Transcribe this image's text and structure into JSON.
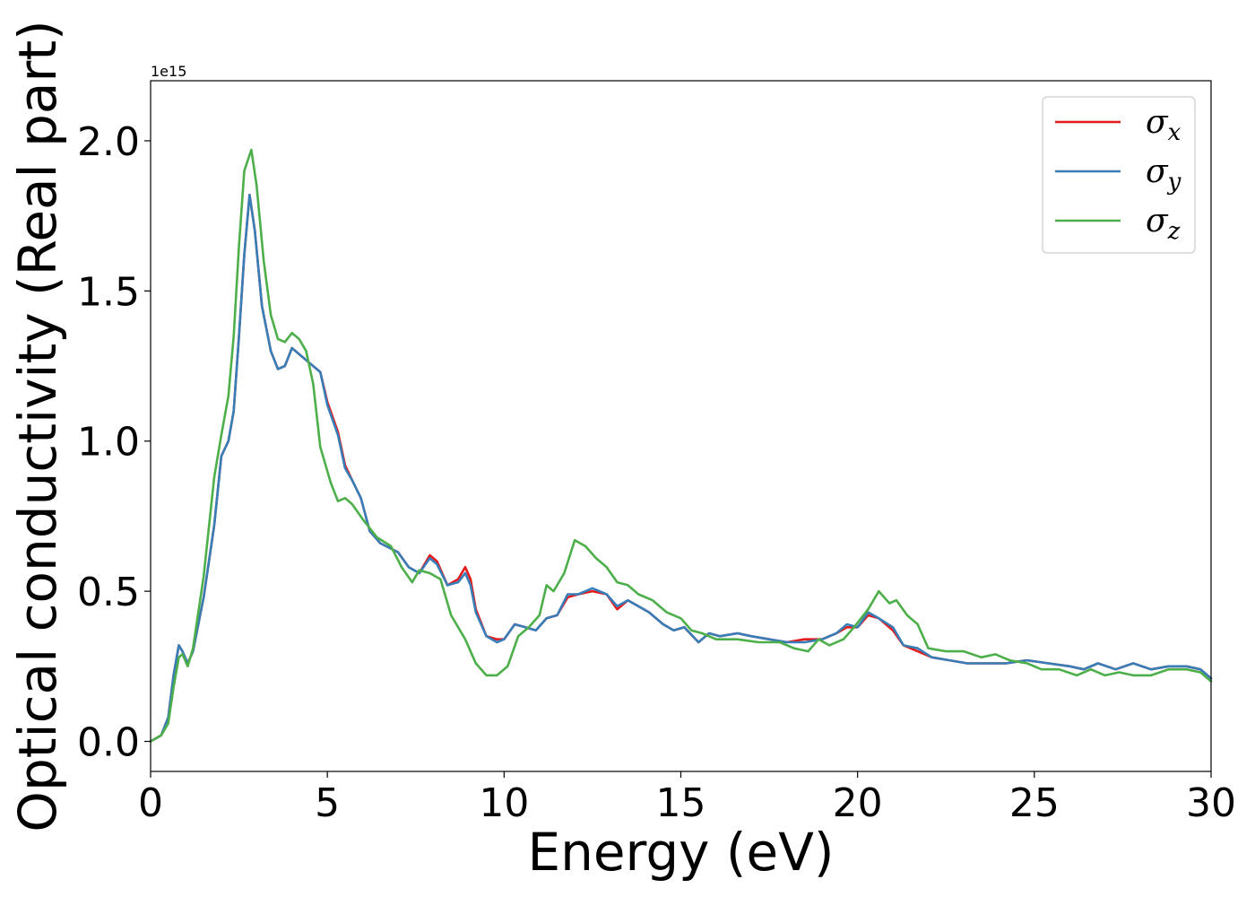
{
  "chart_data": {
    "type": "line",
    "title": "",
    "xlabel": "Energy (eV)",
    "ylabel": "Optical conductivity (Real part)",
    "y_offset_text": "1e15",
    "xlim": [
      0,
      30
    ],
    "ylim": [
      -0.1,
      2.2
    ],
    "xticks": [
      0,
      5,
      10,
      15,
      20,
      25,
      30
    ],
    "xtick_labels": [
      "0",
      "5",
      "10",
      "15",
      "20",
      "25",
      "30"
    ],
    "yticks": [
      0.0,
      0.5,
      1.0,
      1.5,
      2.0
    ],
    "ytick_labels": [
      "0.0",
      "0.5",
      "1.0",
      "1.5",
      "2.0"
    ],
    "grid": false,
    "legend_position": "top-right",
    "series": [
      {
        "name": "σx",
        "legend_symbol": "σ",
        "legend_subscript": "x",
        "color": "#e41a1c",
        "points": [
          [
            0,
            0
          ],
          [
            0.3,
            0.02
          ],
          [
            0.5,
            0.08
          ],
          [
            0.65,
            0.22
          ],
          [
            0.8,
            0.32
          ],
          [
            0.9,
            0.3
          ],
          [
            1.05,
            0.26
          ],
          [
            1.2,
            0.3
          ],
          [
            1.5,
            0.48
          ],
          [
            1.8,
            0.72
          ],
          [
            2.0,
            0.95
          ],
          [
            2.2,
            1.0
          ],
          [
            2.35,
            1.1
          ],
          [
            2.5,
            1.35
          ],
          [
            2.65,
            1.62
          ],
          [
            2.8,
            1.82
          ],
          [
            2.95,
            1.7
          ],
          [
            3.15,
            1.45
          ],
          [
            3.4,
            1.3
          ],
          [
            3.6,
            1.24
          ],
          [
            3.8,
            1.25
          ],
          [
            4.0,
            1.31
          ],
          [
            4.2,
            1.29
          ],
          [
            4.5,
            1.26
          ],
          [
            4.8,
            1.23
          ],
          [
            5.0,
            1.13
          ],
          [
            5.3,
            1.03
          ],
          [
            5.5,
            0.92
          ],
          [
            5.7,
            0.87
          ],
          [
            5.95,
            0.81
          ],
          [
            6.2,
            0.7
          ],
          [
            6.5,
            0.66
          ],
          [
            7.0,
            0.63
          ],
          [
            7.3,
            0.58
          ],
          [
            7.6,
            0.56
          ],
          [
            7.9,
            0.62
          ],
          [
            8.1,
            0.6
          ],
          [
            8.4,
            0.52
          ],
          [
            8.7,
            0.54
          ],
          [
            8.9,
            0.58
          ],
          [
            9.05,
            0.54
          ],
          [
            9.2,
            0.44
          ],
          [
            9.5,
            0.35
          ],
          [
            9.8,
            0.34
          ],
          [
            10.0,
            0.34
          ],
          [
            10.3,
            0.39
          ],
          [
            10.6,
            0.38
          ],
          [
            10.9,
            0.37
          ],
          [
            11.2,
            0.41
          ],
          [
            11.5,
            0.42
          ],
          [
            11.8,
            0.48
          ],
          [
            12.1,
            0.49
          ],
          [
            12.5,
            0.5
          ],
          [
            12.9,
            0.49
          ],
          [
            13.2,
            0.44
          ],
          [
            13.5,
            0.47
          ],
          [
            13.8,
            0.45
          ],
          [
            14.1,
            0.43
          ],
          [
            14.5,
            0.39
          ],
          [
            14.8,
            0.37
          ],
          [
            15.1,
            0.38
          ],
          [
            15.5,
            0.33
          ],
          [
            15.8,
            0.36
          ],
          [
            16.1,
            0.35
          ],
          [
            16.6,
            0.36
          ],
          [
            17.0,
            0.35
          ],
          [
            17.5,
            0.34
          ],
          [
            18.0,
            0.33
          ],
          [
            18.5,
            0.34
          ],
          [
            19.0,
            0.34
          ],
          [
            19.4,
            0.36
          ],
          [
            19.7,
            0.38
          ],
          [
            20.0,
            0.38
          ],
          [
            20.3,
            0.42
          ],
          [
            20.6,
            0.41
          ],
          [
            21.0,
            0.37
          ],
          [
            21.3,
            0.32
          ],
          [
            21.7,
            0.3
          ],
          [
            22.1,
            0.28
          ],
          [
            22.6,
            0.27
          ],
          [
            23.1,
            0.26
          ],
          [
            23.6,
            0.26
          ],
          [
            24.2,
            0.26
          ],
          [
            24.8,
            0.27
          ],
          [
            25.4,
            0.26
          ],
          [
            26.0,
            0.25
          ],
          [
            26.4,
            0.24
          ],
          [
            26.8,
            0.26
          ],
          [
            27.3,
            0.24
          ],
          [
            27.8,
            0.26
          ],
          [
            28.3,
            0.24
          ],
          [
            28.8,
            0.25
          ],
          [
            29.3,
            0.25
          ],
          [
            29.7,
            0.24
          ],
          [
            30.0,
            0.21
          ]
        ]
      },
      {
        "name": "σy",
        "legend_symbol": "σ",
        "legend_subscript": "y",
        "color": "#377eb8",
        "points": [
          [
            0,
            0
          ],
          [
            0.3,
            0.02
          ],
          [
            0.5,
            0.08
          ],
          [
            0.65,
            0.22
          ],
          [
            0.8,
            0.32
          ],
          [
            0.9,
            0.3
          ],
          [
            1.05,
            0.26
          ],
          [
            1.2,
            0.3
          ],
          [
            1.5,
            0.48
          ],
          [
            1.8,
            0.72
          ],
          [
            2.0,
            0.95
          ],
          [
            2.2,
            1.0
          ],
          [
            2.35,
            1.1
          ],
          [
            2.5,
            1.35
          ],
          [
            2.65,
            1.62
          ],
          [
            2.8,
            1.82
          ],
          [
            2.95,
            1.7
          ],
          [
            3.15,
            1.45
          ],
          [
            3.4,
            1.3
          ],
          [
            3.6,
            1.24
          ],
          [
            3.8,
            1.25
          ],
          [
            4.0,
            1.31
          ],
          [
            4.2,
            1.29
          ],
          [
            4.5,
            1.26
          ],
          [
            4.8,
            1.23
          ],
          [
            5.0,
            1.12
          ],
          [
            5.3,
            1.02
          ],
          [
            5.5,
            0.91
          ],
          [
            5.7,
            0.87
          ],
          [
            5.95,
            0.81
          ],
          [
            6.2,
            0.7
          ],
          [
            6.5,
            0.66
          ],
          [
            7.0,
            0.63
          ],
          [
            7.3,
            0.58
          ],
          [
            7.6,
            0.56
          ],
          [
            7.9,
            0.61
          ],
          [
            8.1,
            0.59
          ],
          [
            8.4,
            0.52
          ],
          [
            8.7,
            0.53
          ],
          [
            8.9,
            0.56
          ],
          [
            9.05,
            0.52
          ],
          [
            9.2,
            0.43
          ],
          [
            9.5,
            0.35
          ],
          [
            9.8,
            0.33
          ],
          [
            10.0,
            0.34
          ],
          [
            10.3,
            0.39
          ],
          [
            10.6,
            0.38
          ],
          [
            10.9,
            0.37
          ],
          [
            11.2,
            0.41
          ],
          [
            11.5,
            0.42
          ],
          [
            11.8,
            0.49
          ],
          [
            12.1,
            0.49
          ],
          [
            12.5,
            0.51
          ],
          [
            12.9,
            0.49
          ],
          [
            13.2,
            0.45
          ],
          [
            13.5,
            0.47
          ],
          [
            13.8,
            0.45
          ],
          [
            14.1,
            0.43
          ],
          [
            14.5,
            0.39
          ],
          [
            14.8,
            0.37
          ],
          [
            15.1,
            0.38
          ],
          [
            15.5,
            0.33
          ],
          [
            15.8,
            0.36
          ],
          [
            16.1,
            0.35
          ],
          [
            16.6,
            0.36
          ],
          [
            17.0,
            0.35
          ],
          [
            17.5,
            0.34
          ],
          [
            18.0,
            0.33
          ],
          [
            18.5,
            0.33
          ],
          [
            19.0,
            0.34
          ],
          [
            19.4,
            0.36
          ],
          [
            19.7,
            0.39
          ],
          [
            20.0,
            0.38
          ],
          [
            20.3,
            0.43
          ],
          [
            20.6,
            0.41
          ],
          [
            21.0,
            0.38
          ],
          [
            21.3,
            0.32
          ],
          [
            21.7,
            0.31
          ],
          [
            22.1,
            0.28
          ],
          [
            22.6,
            0.27
          ],
          [
            23.1,
            0.26
          ],
          [
            23.6,
            0.26
          ],
          [
            24.2,
            0.26
          ],
          [
            24.8,
            0.27
          ],
          [
            25.4,
            0.26
          ],
          [
            26.0,
            0.25
          ],
          [
            26.4,
            0.24
          ],
          [
            26.8,
            0.26
          ],
          [
            27.3,
            0.24
          ],
          [
            27.8,
            0.26
          ],
          [
            28.3,
            0.24
          ],
          [
            28.8,
            0.25
          ],
          [
            29.3,
            0.25
          ],
          [
            29.7,
            0.24
          ],
          [
            30.0,
            0.21
          ]
        ]
      },
      {
        "name": "σz",
        "legend_symbol": "σ",
        "legend_subscript": "z",
        "color": "#4daf4a",
        "points": [
          [
            0,
            0
          ],
          [
            0.3,
            0.02
          ],
          [
            0.5,
            0.06
          ],
          [
            0.65,
            0.18
          ],
          [
            0.8,
            0.28
          ],
          [
            0.9,
            0.29
          ],
          [
            1.05,
            0.25
          ],
          [
            1.2,
            0.31
          ],
          [
            1.5,
            0.55
          ],
          [
            1.8,
            0.88
          ],
          [
            2.0,
            1.02
          ],
          [
            2.2,
            1.15
          ],
          [
            2.35,
            1.35
          ],
          [
            2.5,
            1.65
          ],
          [
            2.65,
            1.9
          ],
          [
            2.85,
            1.97
          ],
          [
            3.0,
            1.85
          ],
          [
            3.2,
            1.6
          ],
          [
            3.4,
            1.42
          ],
          [
            3.6,
            1.34
          ],
          [
            3.8,
            1.33
          ],
          [
            4.0,
            1.36
          ],
          [
            4.2,
            1.34
          ],
          [
            4.4,
            1.3
          ],
          [
            4.6,
            1.19
          ],
          [
            4.8,
            0.98
          ],
          [
            5.1,
            0.86
          ],
          [
            5.3,
            0.8
          ],
          [
            5.5,
            0.81
          ],
          [
            5.7,
            0.79
          ],
          [
            6.0,
            0.74
          ],
          [
            6.4,
            0.68
          ],
          [
            6.8,
            0.65
          ],
          [
            7.1,
            0.58
          ],
          [
            7.4,
            0.53
          ],
          [
            7.6,
            0.57
          ],
          [
            7.9,
            0.56
          ],
          [
            8.2,
            0.54
          ],
          [
            8.5,
            0.42
          ],
          [
            8.9,
            0.34
          ],
          [
            9.2,
            0.26
          ],
          [
            9.5,
            0.22
          ],
          [
            9.8,
            0.22
          ],
          [
            10.1,
            0.25
          ],
          [
            10.4,
            0.35
          ],
          [
            10.7,
            0.38
          ],
          [
            11.0,
            0.42
          ],
          [
            11.2,
            0.52
          ],
          [
            11.4,
            0.5
          ],
          [
            11.7,
            0.56
          ],
          [
            12.0,
            0.67
          ],
          [
            12.3,
            0.65
          ],
          [
            12.6,
            0.61
          ],
          [
            12.9,
            0.58
          ],
          [
            13.2,
            0.53
          ],
          [
            13.5,
            0.52
          ],
          [
            13.8,
            0.49
          ],
          [
            14.2,
            0.47
          ],
          [
            14.6,
            0.43
          ],
          [
            15.0,
            0.41
          ],
          [
            15.3,
            0.37
          ],
          [
            15.6,
            0.36
          ],
          [
            16.0,
            0.34
          ],
          [
            16.6,
            0.34
          ],
          [
            17.2,
            0.33
          ],
          [
            17.8,
            0.33
          ],
          [
            18.2,
            0.31
          ],
          [
            18.6,
            0.3
          ],
          [
            18.9,
            0.34
          ],
          [
            19.2,
            0.32
          ],
          [
            19.6,
            0.34
          ],
          [
            19.9,
            0.38
          ],
          [
            20.3,
            0.44
          ],
          [
            20.6,
            0.5
          ],
          [
            20.9,
            0.46
          ],
          [
            21.1,
            0.47
          ],
          [
            21.4,
            0.42
          ],
          [
            21.7,
            0.39
          ],
          [
            22.0,
            0.31
          ],
          [
            22.5,
            0.3
          ],
          [
            23.0,
            0.3
          ],
          [
            23.5,
            0.28
          ],
          [
            23.9,
            0.29
          ],
          [
            24.3,
            0.27
          ],
          [
            24.8,
            0.26
          ],
          [
            25.2,
            0.24
          ],
          [
            25.7,
            0.24
          ],
          [
            26.2,
            0.22
          ],
          [
            26.6,
            0.24
          ],
          [
            27.0,
            0.22
          ],
          [
            27.4,
            0.23
          ],
          [
            27.8,
            0.22
          ],
          [
            28.3,
            0.22
          ],
          [
            28.8,
            0.24
          ],
          [
            29.3,
            0.24
          ],
          [
            29.7,
            0.23
          ],
          [
            30.0,
            0.2
          ]
        ]
      }
    ]
  }
}
